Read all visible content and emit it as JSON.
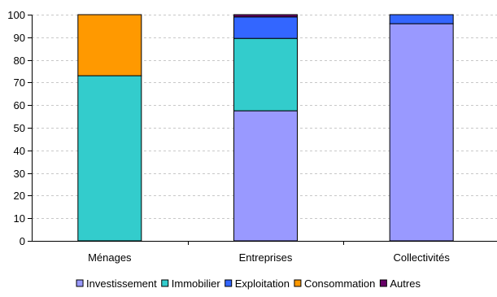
{
  "chart_data": {
    "type": "bar",
    "stacked": true,
    "categories": [
      "Ménages",
      "Entreprises",
      "Collectivités"
    ],
    "series": [
      {
        "name": "Investissement",
        "color": "#9999ff",
        "values": [
          0,
          57.5,
          96
        ]
      },
      {
        "name": "Immobilier",
        "color": "#33cccc",
        "values": [
          73,
          32,
          0
        ]
      },
      {
        "name": "Exploitation",
        "color": "#3366ff",
        "values": [
          0,
          9.5,
          4
        ]
      },
      {
        "name": "Consommation",
        "color": "#ff9900",
        "values": [
          27,
          0,
          0
        ]
      },
      {
        "name": "Autres",
        "color": "#660066",
        "values": [
          0,
          1,
          0
        ]
      }
    ],
    "ylim": [
      0,
      100
    ],
    "yticks": [
      "0",
      "10",
      "20",
      "30",
      "40",
      "50",
      "60",
      "70",
      "80",
      "90",
      "100"
    ],
    "grid": true,
    "legend_position": "bottom"
  }
}
